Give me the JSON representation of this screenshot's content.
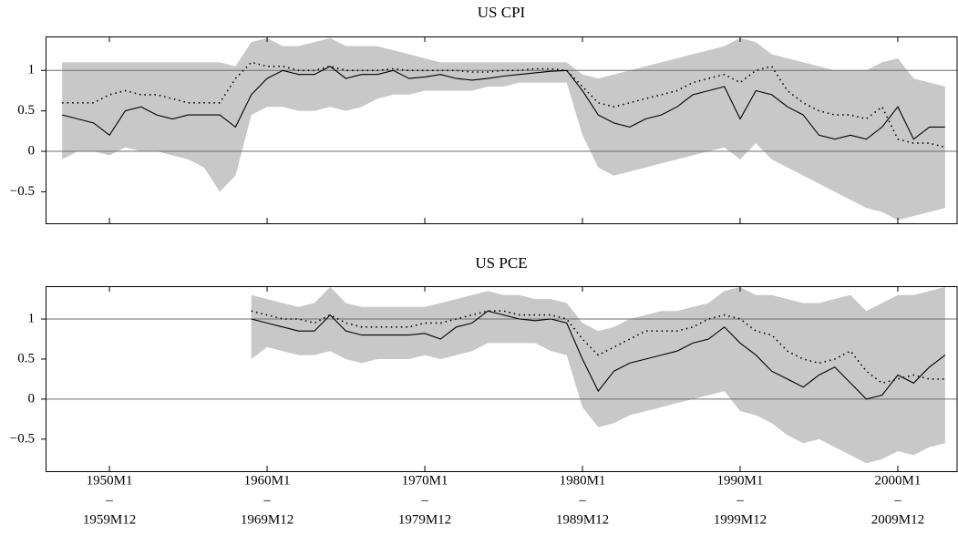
{
  "chart_data": [
    {
      "type": "line",
      "title": "US CPI",
      "x": [
        1947,
        1948,
        1949,
        1950,
        1951,
        1952,
        1953,
        1954,
        1955,
        1956,
        1957,
        1958,
        1959,
        1960,
        1961,
        1962,
        1963,
        1964,
        1965,
        1966,
        1967,
        1968,
        1969,
        1970,
        1971,
        1972,
        1973,
        1974,
        1975,
        1976,
        1977,
        1978,
        1979,
        1980,
        1981,
        1982,
        1983,
        1984,
        1985,
        1986,
        1987,
        1988,
        1989,
        1990,
        1991,
        1992,
        1993,
        1994,
        1995,
        1996,
        1997,
        1998,
        1999,
        2000,
        2001,
        2002,
        2003
      ],
      "xlim": [
        1945.95,
        2003.76
      ],
      "xticks": [
        1950,
        1960,
        1970,
        1980,
        1990,
        2000
      ],
      "show_xtick_labels": false,
      "ylim": [
        -0.89,
        1.42
      ],
      "yticks": [
        {
          "value": -0.5,
          "label": "−0.5"
        },
        0,
        0.5,
        1
      ],
      "hlines": [
        0,
        1
      ],
      "band": {
        "color": "#c8c8c8",
        "lower": [
          -0.1,
          0,
          0,
          -0.05,
          0.05,
          0,
          0,
          -0.05,
          -0.1,
          -0.2,
          -0.5,
          -0.3,
          0.45,
          0.55,
          0.55,
          0.5,
          0.5,
          0.55,
          0.5,
          0.55,
          0.65,
          0.7,
          0.7,
          0.75,
          0.75,
          0.75,
          0.75,
          0.8,
          0.8,
          0.85,
          0.85,
          0.85,
          0.85,
          0.2,
          -0.2,
          -0.3,
          -0.25,
          -0.2,
          -0.15,
          -0.1,
          -0.05,
          0,
          0.05,
          -0.1,
          0.1,
          -0.1,
          -0.2,
          -0.3,
          -0.4,
          -0.5,
          -0.6,
          -0.7,
          -0.75,
          -0.85,
          -0.8,
          -0.75,
          -0.7
        ],
        "upper": [
          1.1,
          1.1,
          1.1,
          1.1,
          1.1,
          1.1,
          1.1,
          1.1,
          1.1,
          1.1,
          1.1,
          1.05,
          1.35,
          1.4,
          1.3,
          1.3,
          1.35,
          1.4,
          1.3,
          1.3,
          1.3,
          1.25,
          1.2,
          1.15,
          1.1,
          1.1,
          1.1,
          1.1,
          1.1,
          1.1,
          1.1,
          1.1,
          1.1,
          0.95,
          0.9,
          0.95,
          1.0,
          1.05,
          1.1,
          1.15,
          1.2,
          1.25,
          1.3,
          1.4,
          1.35,
          1.2,
          1.15,
          1.1,
          1.05,
          1.0,
          1.0,
          1.0,
          1.1,
          1.15,
          0.9,
          0.85,
          0.8
        ]
      },
      "series": [
        {
          "color": "#000000",
          "style": "solid",
          "values": [
            0.45,
            0.4,
            0.35,
            0.2,
            0.5,
            0.55,
            0.45,
            0.4,
            0.45,
            0.45,
            0.45,
            0.3,
            0.7,
            0.9,
            1.0,
            0.95,
            0.95,
            1.05,
            0.9,
            0.95,
            0.95,
            1.0,
            0.9,
            0.92,
            0.95,
            0.9,
            0.88,
            0.9,
            0.93,
            0.95,
            0.97,
            0.99,
            1.0,
            0.75,
            0.45,
            0.35,
            0.3,
            0.4,
            0.45,
            0.55,
            0.7,
            0.75,
            0.8,
            0.4,
            0.75,
            0.7,
            0.55,
            0.45,
            0.2,
            0.15,
            0.2,
            0.15,
            0.3,
            0.55,
            0.15,
            0.3,
            0.3
          ]
        },
        {
          "color": "#000000",
          "style": "dotted",
          "values": [
            0.6,
            0.6,
            0.6,
            0.7,
            0.75,
            0.7,
            0.7,
            0.65,
            0.6,
            0.6,
            0.6,
            0.9,
            1.1,
            1.05,
            1.05,
            1.0,
            1.0,
            1.05,
            1.0,
            1.0,
            1.0,
            1.02,
            1.0,
            1.0,
            1.0,
            1.0,
            0.98,
            0.98,
            1.0,
            1.0,
            1.02,
            1.02,
            1.0,
            0.8,
            0.6,
            0.55,
            0.6,
            0.65,
            0.7,
            0.75,
            0.85,
            0.9,
            0.95,
            0.85,
            1.0,
            1.05,
            0.75,
            0.6,
            0.5,
            0.45,
            0.45,
            0.4,
            0.55,
            0.15,
            0.1,
            0.1,
            0.05
          ]
        }
      ]
    },
    {
      "type": "line",
      "title": "US PCE",
      "x": [
        1959,
        1960,
        1961,
        1962,
        1963,
        1964,
        1965,
        1966,
        1967,
        1968,
        1969,
        1970,
        1971,
        1972,
        1973,
        1974,
        1975,
        1976,
        1977,
        1978,
        1979,
        1980,
        1981,
        1982,
        1983,
        1984,
        1985,
        1986,
        1987,
        1988,
        1989,
        1990,
        1991,
        1992,
        1993,
        1994,
        1995,
        1996,
        1997,
        1998,
        1999,
        2000,
        2001,
        2002,
        2003
      ],
      "xlim": [
        1945.95,
        2003.76
      ],
      "xticks": [
        {
          "value": 1950,
          "label": [
            "1950M1",
            "–",
            "1959M12"
          ]
        },
        {
          "value": 1960,
          "label": [
            "1960M1",
            "–",
            "1969M12"
          ]
        },
        {
          "value": 1970,
          "label": [
            "1970M1",
            "–",
            "1979M12"
          ]
        },
        {
          "value": 1980,
          "label": [
            "1980M1",
            "–",
            "1989M12"
          ]
        },
        {
          "value": 1990,
          "label": [
            "1990M1",
            "–",
            "1999M12"
          ]
        },
        {
          "value": 2000,
          "label": [
            "2000M1",
            "–",
            "2009M12"
          ]
        }
      ],
      "show_xtick_labels": true,
      "ylim": [
        -0.9,
        1.41
      ],
      "yticks": [
        {
          "value": -0.5,
          "label": "−0.5"
        },
        0,
        0.5,
        1
      ],
      "hlines": [
        0,
        1
      ],
      "band": {
        "color": "#c8c8c8",
        "lower": [
          0.5,
          0.65,
          0.6,
          0.55,
          0.55,
          0.6,
          0.5,
          0.45,
          0.5,
          0.5,
          0.5,
          0.55,
          0.5,
          0.55,
          0.6,
          0.7,
          0.7,
          0.7,
          0.7,
          0.6,
          0.55,
          -0.1,
          -0.35,
          -0.3,
          -0.2,
          -0.15,
          -0.1,
          -0.05,
          0,
          0.05,
          0.1,
          -0.15,
          -0.2,
          -0.3,
          -0.45,
          -0.55,
          -0.5,
          -0.6,
          -0.7,
          -0.8,
          -0.75,
          -0.65,
          -0.7,
          -0.6,
          -0.55
        ],
        "upper": [
          1.3,
          1.25,
          1.2,
          1.15,
          1.2,
          1.4,
          1.2,
          1.15,
          1.15,
          1.15,
          1.15,
          1.15,
          1.2,
          1.25,
          1.3,
          1.35,
          1.3,
          1.3,
          1.25,
          1.25,
          1.2,
          0.95,
          0.85,
          0.9,
          1.0,
          1.05,
          1.1,
          1.1,
          1.15,
          1.2,
          1.35,
          1.4,
          1.3,
          1.3,
          1.25,
          1.2,
          1.2,
          1.25,
          1.3,
          1.1,
          1.2,
          1.3,
          1.3,
          1.35,
          1.4
        ]
      },
      "series": [
        {
          "color": "#000000",
          "style": "solid",
          "values": [
            1.0,
            0.95,
            0.9,
            0.85,
            0.85,
            1.05,
            0.85,
            0.8,
            0.8,
            0.8,
            0.8,
            0.82,
            0.75,
            0.9,
            0.95,
            1.1,
            1.05,
            1.0,
            0.98,
            1.0,
            0.95,
            0.5,
            0.1,
            0.35,
            0.45,
            0.5,
            0.55,
            0.6,
            0.7,
            0.75,
            0.9,
            0.7,
            0.55,
            0.35,
            0.25,
            0.15,
            0.3,
            0.4,
            0.2,
            0.0,
            0.05,
            0.3,
            0.2,
            0.4,
            0.55
          ]
        },
        {
          "color": "#000000",
          "style": "dotted",
          "values": [
            1.1,
            1.05,
            1.0,
            1.0,
            0.95,
            1.05,
            0.95,
            0.9,
            0.9,
            0.9,
            0.9,
            0.95,
            0.95,
            1.0,
            1.05,
            1.1,
            1.1,
            1.05,
            1.05,
            1.05,
            1.0,
            0.75,
            0.55,
            0.65,
            0.75,
            0.85,
            0.85,
            0.85,
            0.9,
            1.0,
            1.05,
            1.0,
            0.85,
            0.8,
            0.6,
            0.5,
            0.45,
            0.5,
            0.6,
            0.35,
            0.2,
            0.25,
            0.3,
            0.25,
            0.25
          ]
        }
      ]
    }
  ]
}
